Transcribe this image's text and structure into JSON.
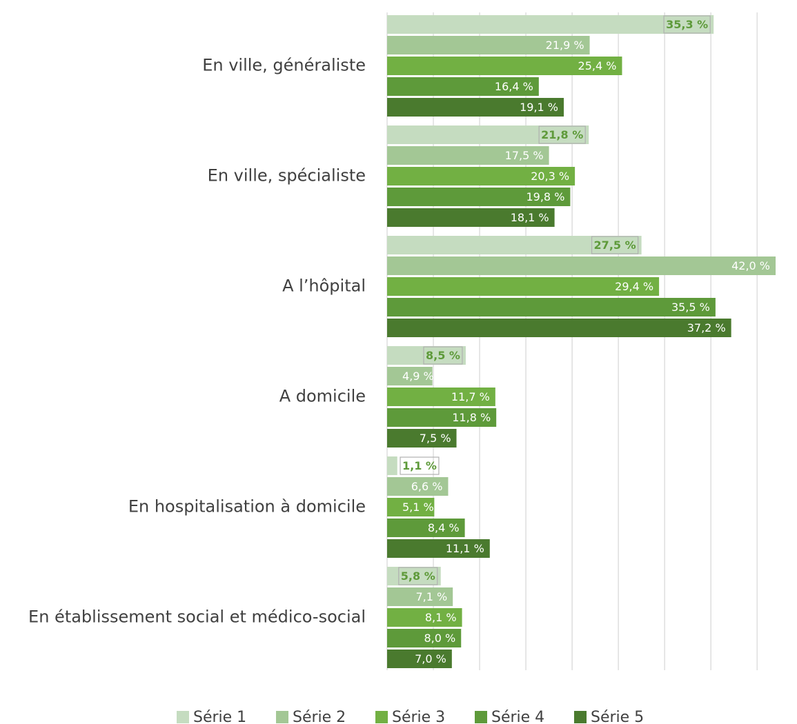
{
  "chart_data": {
    "type": "bar",
    "orientation": "horizontal",
    "categories": [
      "En ville, généraliste",
      "En ville, spécialiste",
      "A l’hôpital",
      "A domicile",
      "En hospitalisation à domicile",
      "En établissement social et médico-social"
    ],
    "series": [
      {
        "name": "Série 1",
        "color": "#c5dcc0",
        "values": [
          35.3,
          21.8,
          27.5,
          8.5,
          1.1,
          5.8
        ],
        "value_labels": [
          "35,3 %",
          "21,8 %",
          "27,5 %",
          "8,5 %",
          "1,1 %",
          "5,8 %"
        ]
      },
      {
        "name": "Série 2",
        "color": "#a3c795",
        "values": [
          21.9,
          17.5,
          42.0,
          4.9,
          6.6,
          7.1
        ],
        "value_labels": [
          "21,9 %",
          "17,5 %",
          "42,0 %",
          "4,9 %",
          "6,6 %",
          "7,1 %"
        ]
      },
      {
        "name": "Série 3",
        "color": "#72b043",
        "values": [
          25.4,
          20.3,
          29.4,
          11.7,
          5.1,
          8.1
        ],
        "value_labels": [
          "25,4 %",
          "20,3 %",
          "29,4 %",
          "11,7 %",
          "5,1 %",
          "8,1 %"
        ]
      },
      {
        "name": "Série 4",
        "color": "#5e9a3a",
        "values": [
          16.4,
          19.8,
          35.5,
          11.8,
          8.4,
          8.0
        ],
        "value_labels": [
          "16,4 %",
          "19,8 %",
          "35,5 %",
          "11,8 %",
          "8,4 %",
          "8,0 %"
        ]
      },
      {
        "name": "Série 5",
        "color": "#4a7a2e",
        "values": [
          19.1,
          18.1,
          37.2,
          7.5,
          11.1,
          7.0
        ],
        "value_labels": [
          "19,1 %",
          "18,1 %",
          "37,2 %",
          "7,5 %",
          "11,1 %",
          "7,0 %"
        ]
      }
    ],
    "xlim": [
      0,
      42
    ],
    "xticks": [
      0,
      5,
      10,
      15,
      20,
      25,
      30,
      35,
      40
    ],
    "grid": true,
    "legend": "bottom"
  }
}
